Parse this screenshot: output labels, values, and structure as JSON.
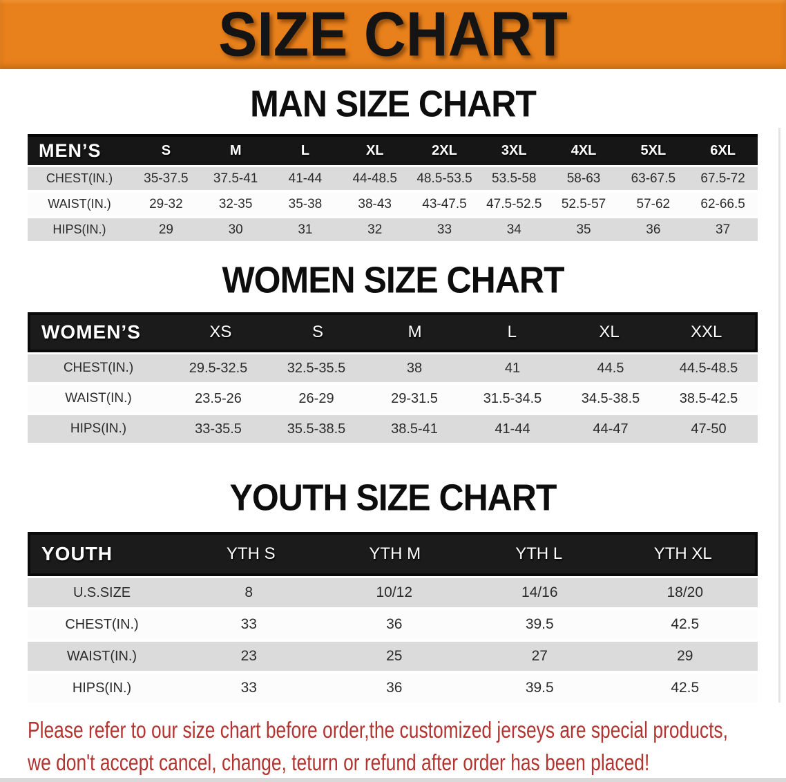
{
  "colors": {
    "banner_orange": "#E8811B",
    "table_header_black": "#161616",
    "stripe_gray": "#DBDBDB",
    "stripe_white": "#FCFCFC",
    "note_red": "#B23430"
  },
  "banner": {
    "title": "SIZE CHART"
  },
  "men": {
    "heading": "MAN SIZE CHART",
    "corner": "MEN’S",
    "columns": [
      "S",
      "M",
      "L",
      "XL",
      "2XL",
      "3XL",
      "4XL",
      "5XL",
      "6XL"
    ],
    "rows": [
      {
        "label": "CHEST(IN.)",
        "values": [
          "35-37.5",
          "37.5-41",
          "41-44",
          "44-48.5",
          "48.5-53.5",
          "53.5-58",
          "58-63",
          "63-67.5",
          "67.5-72"
        ]
      },
      {
        "label": "WAIST(IN.)",
        "values": [
          "29-32",
          "32-35",
          "35-38",
          "38-43",
          "43-47.5",
          "47.5-52.5",
          "52.5-57",
          "57-62",
          "62-66.5"
        ]
      },
      {
        "label": "HIPS(IN.)",
        "values": [
          "29",
          "30",
          "31",
          "32",
          "33",
          "34",
          "35",
          "36",
          "37"
        ]
      }
    ]
  },
  "women": {
    "heading": "WOMEN SIZE CHART",
    "corner": "WOMEN’S",
    "columns": [
      "XS",
      "S",
      "M",
      "L",
      "XL",
      "XXL"
    ],
    "rows": [
      {
        "label": "CHEST(IN.)",
        "values": [
          "29.5-32.5",
          "32.5-35.5",
          "38",
          "41",
          "44.5",
          "44.5-48.5"
        ]
      },
      {
        "label": "WAIST(IN.)",
        "values": [
          "23.5-26",
          "26-29",
          "29-31.5",
          "31.5-34.5",
          "34.5-38.5",
          "38.5-42.5"
        ]
      },
      {
        "label": "HIPS(IN.)",
        "values": [
          "33-35.5",
          "35.5-38.5",
          "38.5-41",
          "41-44",
          "44-47",
          "47-50"
        ]
      }
    ]
  },
  "youth": {
    "heading": "YOUTH SIZE CHART",
    "corner": "YOUTH",
    "columns": [
      "YTH S",
      "YTH M",
      "YTH L",
      "YTH XL"
    ],
    "rows": [
      {
        "label": "U.S.SIZE",
        "values": [
          "8",
          "10/12",
          "14/16",
          "18/20"
        ]
      },
      {
        "label": "CHEST(IN.)",
        "values": [
          "33",
          "36",
          "39.5",
          "42.5"
        ]
      },
      {
        "label": "WAIST(IN.)",
        "values": [
          "23",
          "25",
          "27",
          "29"
        ]
      },
      {
        "label": "HIPS(IN.)",
        "values": [
          "33",
          "36",
          "39.5",
          "42.5"
        ]
      }
    ]
  },
  "note": {
    "line1": "Please refer to our size chart before order,the customized jerseys are special products,",
    "line2": "we don't accept cancel, change, teturn or refund after order has been placed!"
  }
}
